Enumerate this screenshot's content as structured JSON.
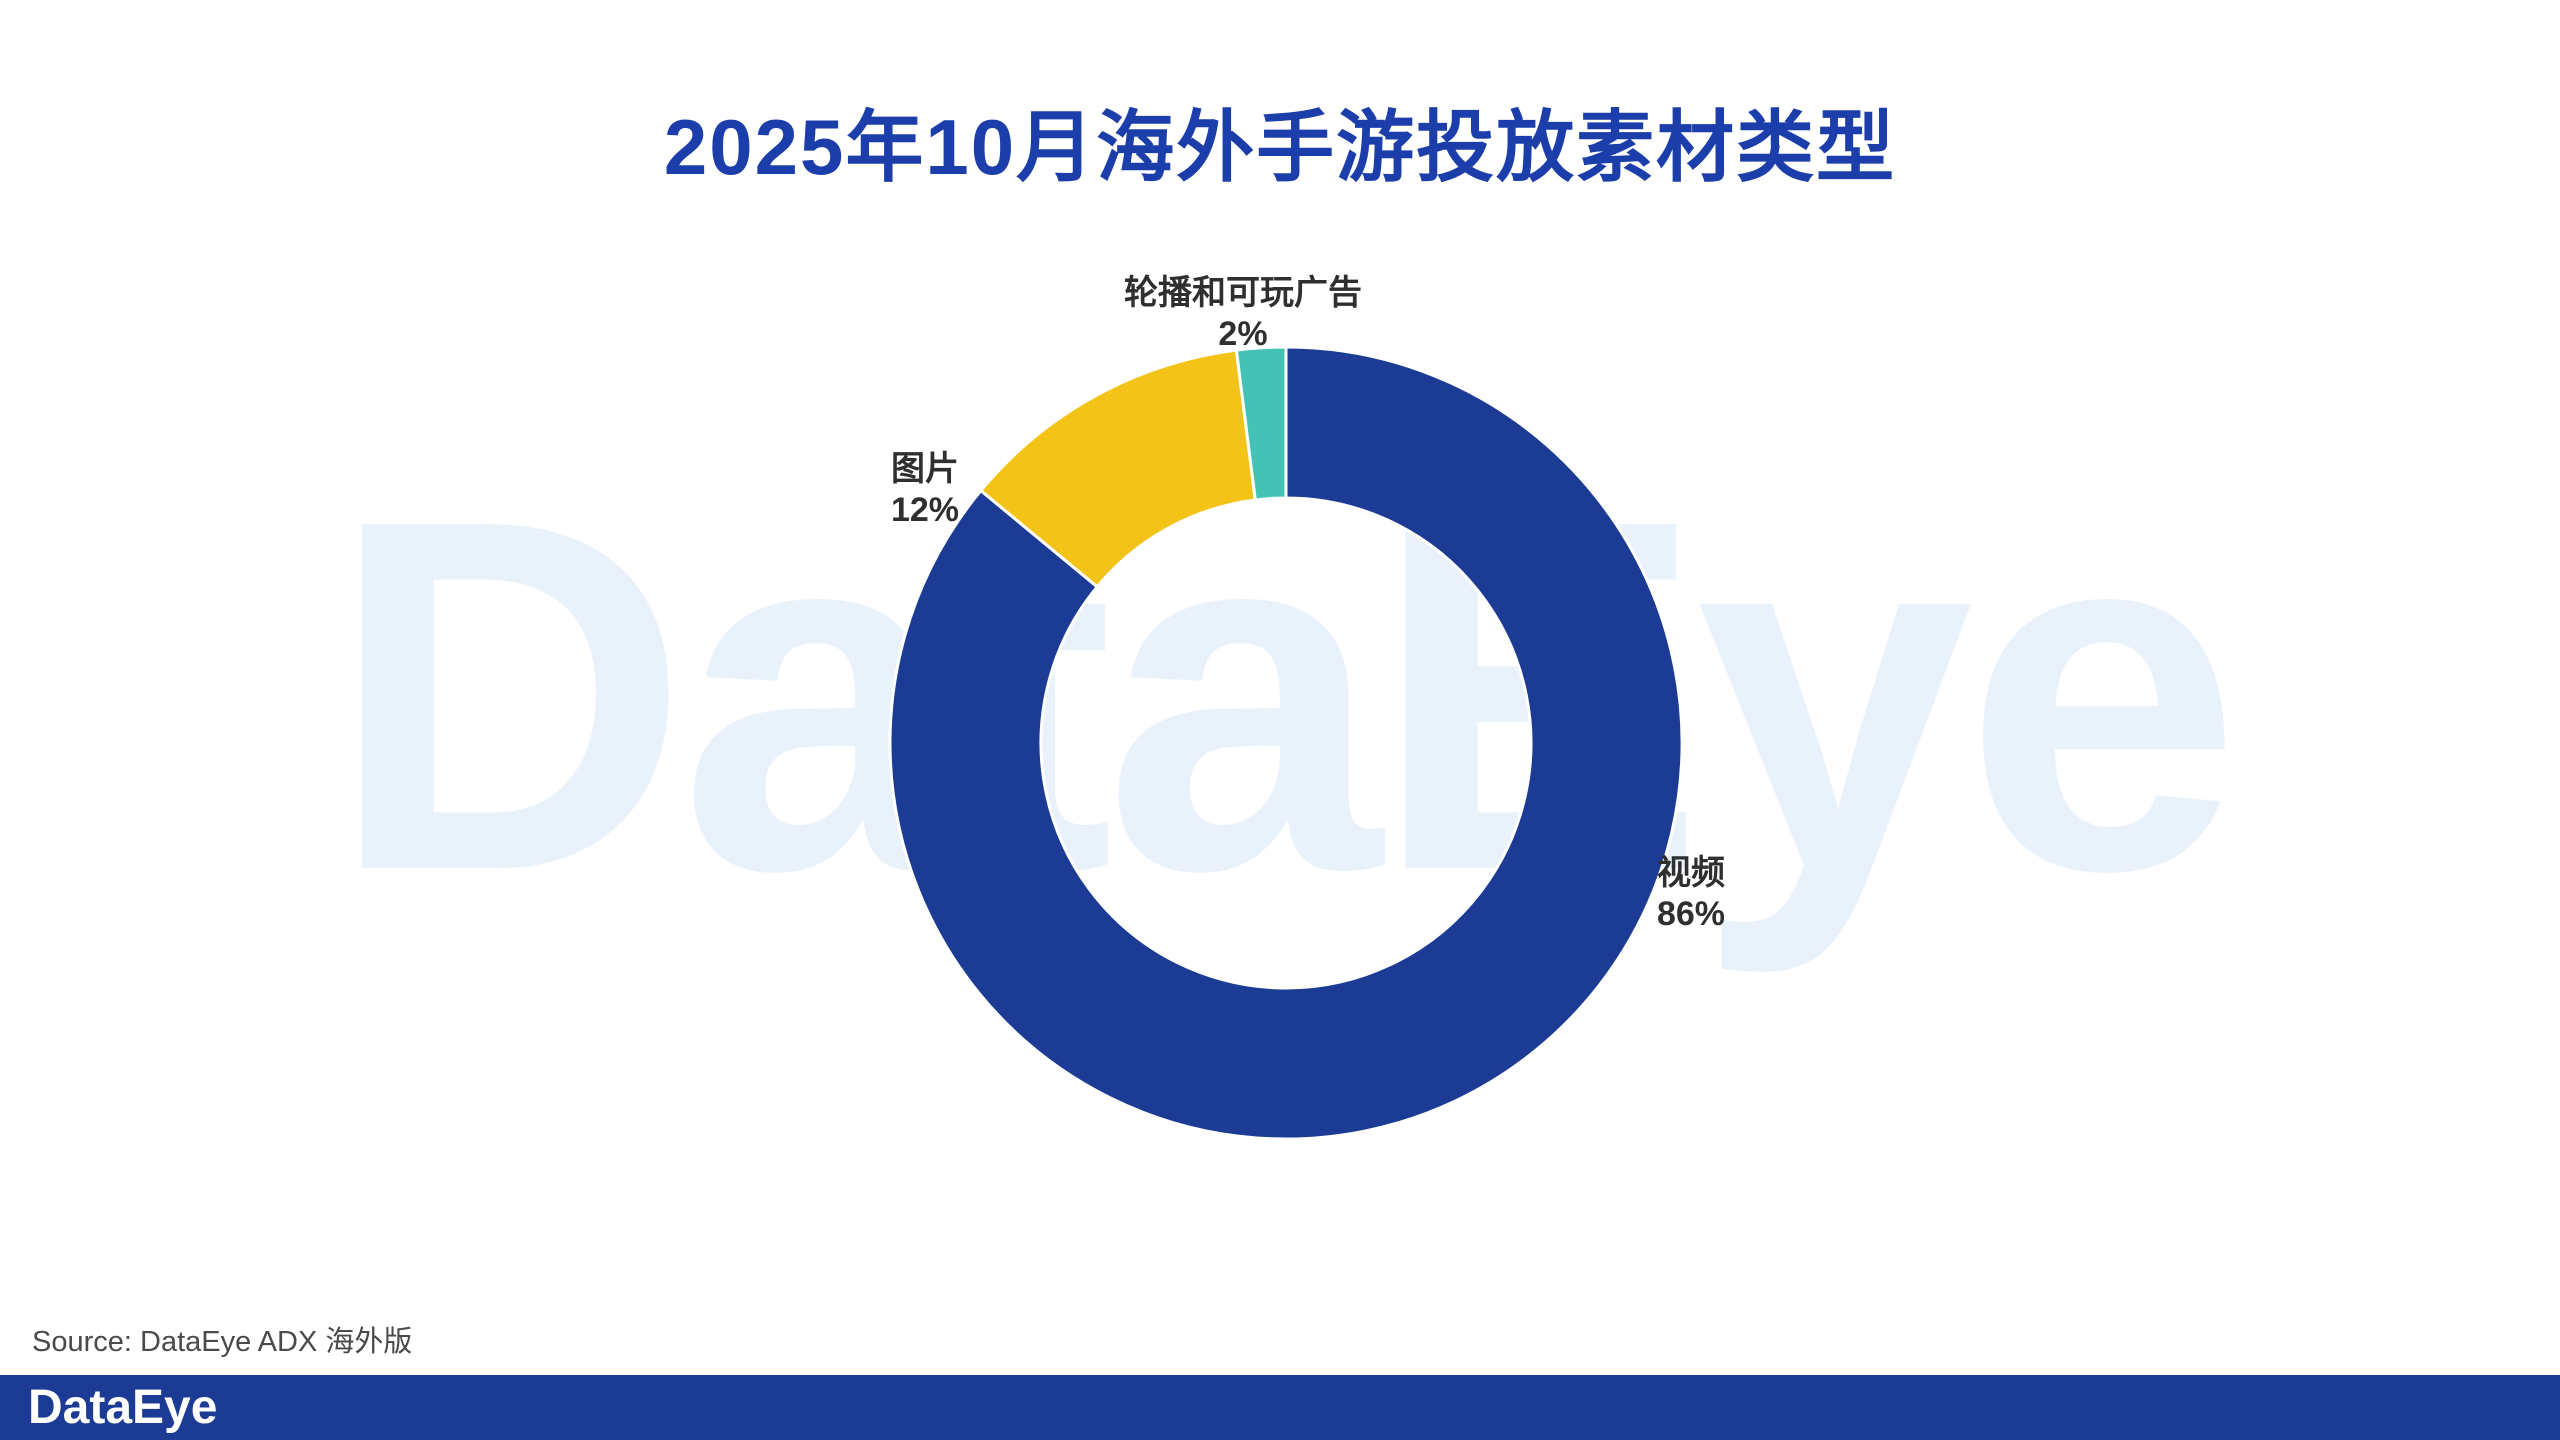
{
  "page": {
    "title": "2025年10月海外手游投放素材类型",
    "watermark": "DataEye",
    "source": "Source: DataEye ADX 海外版",
    "footer_logo": "DataEye"
  },
  "colors": {
    "title_blue": "#1c3eab",
    "navy": "#1c3b94",
    "yellow": "#f3c318",
    "teal": "#43c2b5",
    "watermark_blue": "#e9f2fb",
    "label_text": "#2f2f2f",
    "source_text": "#4a4a4a",
    "footer_bar": "#1c3b94"
  },
  "chart_data": {
    "type": "pie",
    "subtype": "donut",
    "title": "2025年10月海外手游投放素材类型",
    "unit": "%",
    "start_angle_deg": 0,
    "direction": "clockwise",
    "inner_radius_ratio": 0.62,
    "legend": "none",
    "slices": [
      {
        "id": "video",
        "label": "视频",
        "value": 86,
        "percent_label": "86%",
        "color": "#1c3b94"
      },
      {
        "id": "image",
        "label": "图片",
        "value": 12,
        "percent_label": "12%",
        "color": "#f3c318"
      },
      {
        "id": "carousel-playable",
        "label": "轮播和可玩广告",
        "value": 2,
        "percent_label": "2%",
        "color": "#43c2b5"
      }
    ]
  }
}
